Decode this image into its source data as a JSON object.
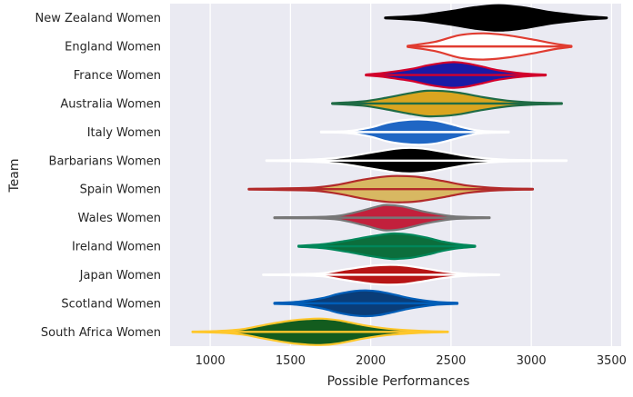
{
  "chart_data": {
    "type": "violin",
    "title": "",
    "xlabel": "Possible Performances",
    "ylabel": "Team",
    "xlim": [
      750,
      3560
    ],
    "xticks": [
      1000,
      1500,
      2000,
      2500,
      3000,
      3500
    ],
    "grid": true,
    "legend": "none",
    "background": "#eaeaf2",
    "gridColor": "#ffffff",
    "categories": [
      "New Zealand Women",
      "England Women",
      "France Women",
      "Australia Women",
      "Italy Women",
      "Barbarians Women",
      "Spain Women",
      "Wales Women",
      "Ireland Women",
      "Japan Women",
      "Scotland Women",
      "South Africa Women"
    ],
    "series": [
      {
        "min": 2090,
        "max": 3470,
        "fill": "#000000",
        "edge": "#000000",
        "density": [
          [
            2090,
            0.03
          ],
          [
            2300,
            0.18
          ],
          [
            2500,
            0.52
          ],
          [
            2650,
            0.82
          ],
          [
            2800,
            0.97
          ],
          [
            2950,
            0.8
          ],
          [
            3100,
            0.48
          ],
          [
            3250,
            0.25
          ],
          [
            3350,
            0.12
          ],
          [
            3470,
            0.03
          ]
        ]
      },
      {
        "min": 2230,
        "max": 3250,
        "fill": "#ffffff",
        "edge": "#e03c31",
        "density": [
          [
            2230,
            0.04
          ],
          [
            2400,
            0.35
          ],
          [
            2550,
            0.85
          ],
          [
            2700,
            1.0
          ],
          [
            2850,
            0.85
          ],
          [
            3000,
            0.55
          ],
          [
            3150,
            0.2
          ],
          [
            3250,
            0.04
          ]
        ]
      },
      {
        "min": 1970,
        "max": 3090,
        "fill": "#1a1aa6",
        "edge": "#d2002c",
        "density": [
          [
            1970,
            0.03
          ],
          [
            2100,
            0.18
          ],
          [
            2250,
            0.45
          ],
          [
            2350,
            0.72
          ],
          [
            2450,
            0.92
          ],
          [
            2520,
            0.98
          ],
          [
            2600,
            0.88
          ],
          [
            2700,
            0.62
          ],
          [
            2800,
            0.35
          ],
          [
            2950,
            0.12
          ],
          [
            3090,
            0.03
          ]
        ]
      },
      {
        "min": 1760,
        "max": 3190,
        "fill": "#d9a520",
        "edge": "#1f6b45",
        "density": [
          [
            1760,
            0.03
          ],
          [
            1950,
            0.16
          ],
          [
            2100,
            0.45
          ],
          [
            2250,
            0.8
          ],
          [
            2350,
            0.97
          ],
          [
            2450,
            0.95
          ],
          [
            2550,
            0.82
          ],
          [
            2700,
            0.48
          ],
          [
            2850,
            0.22
          ],
          [
            3000,
            0.09
          ],
          [
            3190,
            0.03
          ]
        ]
      },
      {
        "min": 1690,
        "max": 2860,
        "fill": "#1f66c4",
        "edge": "#ffffff",
        "density": [
          [
            1690,
            0.03
          ],
          [
            1850,
            0.07
          ],
          [
            2000,
            0.35
          ],
          [
            2100,
            0.7
          ],
          [
            2200,
            0.9
          ],
          [
            2300,
            0.97
          ],
          [
            2400,
            0.88
          ],
          [
            2500,
            0.6
          ],
          [
            2600,
            0.28
          ],
          [
            2700,
            0.08
          ],
          [
            2860,
            0.03
          ]
        ]
      },
      {
        "min": 1350,
        "max": 3220,
        "fill": "#000000",
        "edge": "#ffffff",
        "density": [
          [
            1350,
            0.02
          ],
          [
            1600,
            0.07
          ],
          [
            1800,
            0.22
          ],
          [
            2000,
            0.6
          ],
          [
            2150,
            0.9
          ],
          [
            2250,
            0.97
          ],
          [
            2350,
            0.88
          ],
          [
            2500,
            0.55
          ],
          [
            2650,
            0.25
          ],
          [
            2850,
            0.07
          ],
          [
            3220,
            0.02
          ]
        ]
      },
      {
        "min": 1240,
        "max": 3010,
        "fill": "#d8b862",
        "edge": "#b22a2a",
        "density": [
          [
            1240,
            0.03
          ],
          [
            1450,
            0.06
          ],
          [
            1650,
            0.12
          ],
          [
            1800,
            0.35
          ],
          [
            1950,
            0.72
          ],
          [
            2100,
            0.97
          ],
          [
            2200,
            1.0
          ],
          [
            2300,
            0.92
          ],
          [
            2450,
            0.62
          ],
          [
            2600,
            0.28
          ],
          [
            2800,
            0.08
          ],
          [
            3010,
            0.03
          ]
        ]
      },
      {
        "min": 1400,
        "max": 2740,
        "fill": "#c2203c",
        "edge": "#777777",
        "density": [
          [
            1400,
            0.03
          ],
          [
            1650,
            0.05
          ],
          [
            1800,
            0.15
          ],
          [
            1950,
            0.55
          ],
          [
            2050,
            0.88
          ],
          [
            2100,
            0.97
          ],
          [
            2200,
            0.85
          ],
          [
            2350,
            0.42
          ],
          [
            2500,
            0.12
          ],
          [
            2600,
            0.06
          ],
          [
            2740,
            0.03
          ]
        ]
      },
      {
        "min": 1550,
        "max": 2650,
        "fill": "#0c6e3c",
        "edge": "#00875a",
        "density": [
          [
            1550,
            0.04
          ],
          [
            1700,
            0.15
          ],
          [
            1850,
            0.42
          ],
          [
            2000,
            0.75
          ],
          [
            2100,
            0.93
          ],
          [
            2150,
            0.97
          ],
          [
            2250,
            0.88
          ],
          [
            2350,
            0.65
          ],
          [
            2450,
            0.35
          ],
          [
            2550,
            0.15
          ],
          [
            2650,
            0.04
          ]
        ]
      },
      {
        "min": 1330,
        "max": 2800,
        "fill": "#b71515",
        "edge": "#ffffff",
        "density": [
          [
            1330,
            0.02
          ],
          [
            1550,
            0.05
          ],
          [
            1700,
            0.12
          ],
          [
            1850,
            0.42
          ],
          [
            2000,
            0.68
          ],
          [
            2100,
            0.75
          ],
          [
            2200,
            0.72
          ],
          [
            2300,
            0.55
          ],
          [
            2450,
            0.25
          ],
          [
            2600,
            0.08
          ],
          [
            2800,
            0.02
          ]
        ]
      },
      {
        "min": 1400,
        "max": 2540,
        "fill": "#0a3d78",
        "edge": "#005eb8",
        "density": [
          [
            1400,
            0.04
          ],
          [
            1550,
            0.12
          ],
          [
            1700,
            0.4
          ],
          [
            1800,
            0.72
          ],
          [
            1900,
            0.93
          ],
          [
            1970,
            0.98
          ],
          [
            2050,
            0.9
          ],
          [
            2150,
            0.65
          ],
          [
            2250,
            0.38
          ],
          [
            2400,
            0.12
          ],
          [
            2540,
            0.04
          ]
        ]
      },
      {
        "min": 890,
        "max": 2480,
        "fill": "#135c1e",
        "edge": "#ffc72c",
        "density": [
          [
            890,
            0.02
          ],
          [
            1050,
            0.06
          ],
          [
            1200,
            0.2
          ],
          [
            1350,
            0.55
          ],
          [
            1500,
            0.85
          ],
          [
            1600,
            0.97
          ],
          [
            1700,
            1.0
          ],
          [
            1800,
            0.88
          ],
          [
            1950,
            0.52
          ],
          [
            2100,
            0.25
          ],
          [
            2300,
            0.08
          ],
          [
            2480,
            0.02
          ]
        ]
      }
    ]
  }
}
